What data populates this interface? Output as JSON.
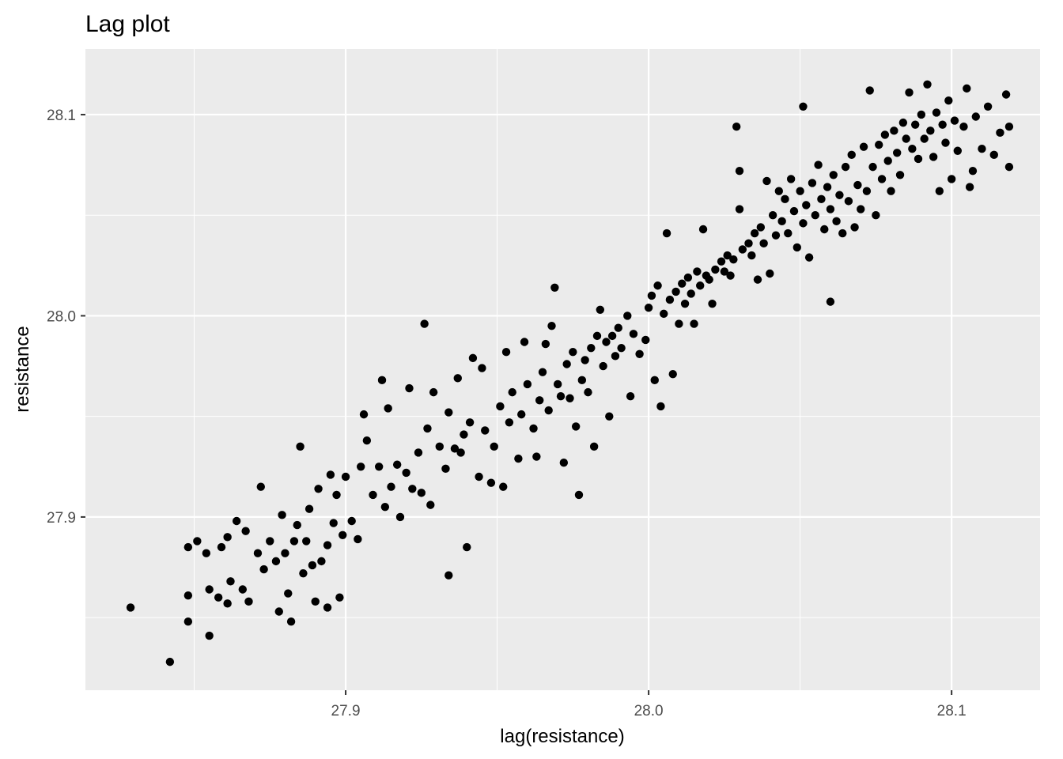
{
  "chart_data": {
    "type": "scatter",
    "title": "Lag plot",
    "x_label": "lag(resistance)",
    "y_label": "resistance",
    "color": "#000000",
    "grid": true,
    "xlim": [
      27.8141,
      28.1292
    ],
    "ylim": [
      27.8139,
      28.1326
    ],
    "xticks": [
      {
        "value": 27.9,
        "label": "27.9"
      },
      {
        "value": 28.0,
        "label": "28.0"
      },
      {
        "value": 28.1,
        "label": "28.1"
      }
    ],
    "yticks": [
      {
        "value": 27.9,
        "label": "27.9"
      },
      {
        "value": 28.0,
        "label": "28.0"
      },
      {
        "value": 28.1,
        "label": "28.1"
      }
    ],
    "x": [
      27.829,
      27.842,
      27.848,
      27.848,
      27.848,
      27.851,
      27.854,
      27.855,
      27.855,
      27.858,
      27.859,
      27.861,
      27.861,
      27.862,
      27.864,
      27.866,
      27.867,
      27.868,
      27.871,
      27.872,
      27.873,
      27.875,
      27.877,
      27.878,
      27.879,
      27.88,
      27.881,
      27.882,
      27.883,
      27.884,
      27.885,
      27.886,
      27.887,
      27.888,
      27.889,
      27.89,
      27.891,
      27.892,
      27.894,
      27.894,
      27.895,
      27.896,
      27.897,
      27.898,
      27.899,
      27.9,
      27.902,
      27.904,
      27.905,
      27.906,
      27.907,
      27.909,
      27.911,
      27.912,
      27.913,
      27.914,
      27.915,
      27.917,
      27.918,
      27.92,
      27.921,
      27.922,
      27.924,
      27.925,
      27.926,
      27.927,
      27.928,
      27.929,
      27.931,
      27.933,
      27.934,
      27.934,
      27.936,
      27.937,
      27.938,
      27.939,
      27.94,
      27.941,
      27.942,
      27.944,
      27.945,
      27.946,
      27.948,
      27.949,
      27.951,
      27.952,
      27.953,
      27.954,
      27.955,
      27.957,
      27.958,
      27.959,
      27.96,
      27.962,
      27.963,
      27.964,
      27.965,
      27.966,
      27.967,
      27.968,
      27.969,
      27.97,
      27.971,
      27.972,
      27.973,
      27.974,
      27.975,
      27.976,
      27.977,
      27.978,
      27.979,
      27.98,
      27.981,
      27.982,
      27.983,
      27.984,
      27.985,
      27.986,
      27.987,
      27.988,
      27.989,
      27.99,
      27.991,
      27.993,
      27.994,
      27.995,
      27.997,
      27.999,
      28.0,
      28.001,
      28.002,
      28.003,
      28.004,
      28.005,
      28.006,
      28.007,
      28.008,
      28.009,
      28.01,
      28.011,
      28.012,
      28.013,
      28.014,
      28.015,
      28.016,
      28.017,
      28.018,
      28.019,
      28.02,
      28.021,
      28.022,
      28.024,
      28.025,
      28.026,
      28.027,
      28.028,
      28.029,
      28.03,
      28.03,
      28.031,
      28.033,
      28.034,
      28.035,
      28.036,
      28.037,
      28.038,
      28.039,
      28.04,
      28.041,
      28.042,
      28.043,
      28.044,
      28.045,
      28.046,
      28.047,
      28.048,
      28.049,
      28.05,
      28.051,
      28.051,
      28.052,
      28.053,
      28.054,
      28.055,
      28.056,
      28.057,
      28.058,
      28.059,
      28.06,
      28.06,
      28.061,
      28.062,
      28.063,
      28.064,
      28.065,
      28.066,
      28.067,
      28.068,
      28.069,
      28.07,
      28.071,
      28.072,
      28.073,
      28.074,
      28.075,
      28.076,
      28.077,
      28.078,
      28.079,
      28.08,
      28.081,
      28.082,
      28.083,
      28.084,
      28.085,
      28.086,
      28.087,
      28.088,
      28.089,
      28.09,
      28.091,
      28.092,
      28.093,
      28.094,
      28.095,
      28.096,
      28.097,
      28.098,
      28.099,
      28.1,
      28.101,
      28.102,
      28.104,
      28.105,
      28.106,
      28.107,
      28.108,
      28.11,
      28.112,
      28.114,
      28.116,
      28.118,
      28.119,
      28.119
    ],
    "values": [
      27.855,
      27.828,
      27.848,
      27.861,
      27.885,
      27.888,
      27.882,
      27.864,
      27.841,
      27.86,
      27.885,
      27.857,
      27.89,
      27.868,
      27.898,
      27.864,
      27.893,
      27.858,
      27.882,
      27.915,
      27.874,
      27.888,
      27.878,
      27.853,
      27.901,
      27.882,
      27.862,
      27.848,
      27.888,
      27.896,
      27.935,
      27.872,
      27.888,
      27.904,
      27.876,
      27.858,
      27.914,
      27.878,
      27.855,
      27.886,
      27.921,
      27.897,
      27.911,
      27.86,
      27.891,
      27.92,
      27.898,
      27.889,
      27.925,
      27.951,
      27.938,
      27.911,
      27.925,
      27.968,
      27.905,
      27.954,
      27.915,
      27.926,
      27.9,
      27.922,
      27.964,
      27.914,
      27.932,
      27.912,
      27.996,
      27.944,
      27.906,
      27.962,
      27.935,
      27.924,
      27.871,
      27.952,
      27.934,
      27.969,
      27.932,
      27.941,
      27.885,
      27.947,
      27.979,
      27.92,
      27.974,
      27.943,
      27.917,
      27.935,
      27.955,
      27.915,
      27.982,
      27.947,
      27.962,
      27.929,
      27.951,
      27.987,
      27.966,
      27.944,
      27.93,
      27.958,
      27.972,
      27.986,
      27.953,
      27.995,
      28.014,
      27.966,
      27.96,
      27.927,
      27.976,
      27.959,
      27.982,
      27.945,
      27.911,
      27.968,
      27.978,
      27.962,
      27.984,
      27.935,
      27.99,
      28.003,
      27.975,
      27.987,
      27.95,
      27.99,
      27.98,
      27.994,
      27.984,
      28.0,
      27.96,
      27.991,
      27.981,
      27.988,
      28.004,
      28.01,
      27.968,
      28.015,
      27.955,
      28.001,
      28.041,
      28.008,
      27.971,
      28.012,
      27.996,
      28.016,
      28.006,
      28.019,
      28.011,
      27.996,
      28.022,
      28.015,
      28.043,
      28.02,
      28.018,
      28.006,
      28.023,
      28.027,
      28.022,
      28.03,
      28.02,
      28.028,
      28.094,
      28.072,
      28.053,
      28.033,
      28.036,
      28.03,
      28.041,
      28.018,
      28.044,
      28.036,
      28.067,
      28.021,
      28.05,
      28.04,
      28.062,
      28.047,
      28.058,
      28.041,
      28.068,
      28.052,
      28.034,
      28.062,
      28.104,
      28.046,
      28.055,
      28.029,
      28.066,
      28.05,
      28.075,
      28.058,
      28.043,
      28.064,
      28.007,
      28.053,
      28.07,
      28.047,
      28.06,
      28.041,
      28.074,
      28.057,
      28.08,
      28.044,
      28.065,
      28.053,
      28.084,
      28.062,
      28.112,
      28.074,
      28.05,
      28.085,
      28.068,
      28.09,
      28.077,
      28.062,
      28.092,
      28.081,
      28.07,
      28.096,
      28.088,
      28.111,
      28.083,
      28.095,
      28.078,
      28.1,
      28.088,
      28.115,
      28.092,
      28.079,
      28.101,
      28.062,
      28.095,
      28.086,
      28.107,
      28.068,
      28.097,
      28.082,
      28.094,
      28.113,
      28.064,
      28.072,
      28.099,
      28.083,
      28.104,
      28.08,
      28.091,
      28.11,
      28.094,
      28.074
    ]
  }
}
